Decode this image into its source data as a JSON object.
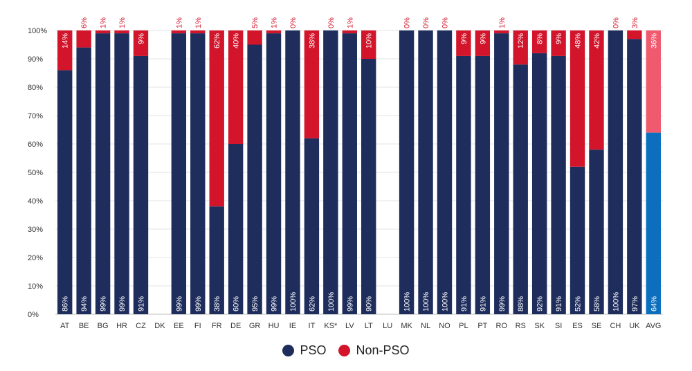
{
  "chart_data": {
    "type": "bar",
    "stacked": true,
    "categories": [
      "AT",
      "BE",
      "BG",
      "HR",
      "CZ",
      "DK",
      "EE",
      "FI",
      "FR",
      "DE",
      "GR",
      "HU",
      "IE",
      "IT",
      "KS*",
      "LV",
      "LT",
      "LU",
      "MK",
      "NL",
      "NO",
      "PL",
      "PT",
      "RO",
      "RS",
      "SK",
      "SI",
      "ES",
      "SE",
      "CH",
      "UK",
      "AVG"
    ],
    "series": [
      {
        "name": "PSO",
        "values": [
          86,
          94,
          99,
          99,
          91,
          null,
          99,
          99,
          38,
          60,
          95,
          99,
          100,
          62,
          100,
          99,
          90,
          null,
          100,
          100,
          100,
          91,
          91,
          99,
          88,
          92,
          91,
          52,
          58,
          100,
          97,
          64
        ],
        "labels": [
          "86%",
          "94%",
          "99%",
          "99%",
          "91%",
          "",
          "99%",
          "99%",
          "38%",
          "60%",
          "95%",
          "99%",
          "100%",
          "62%",
          "100%",
          "99%",
          "90%",
          "",
          "100%",
          "100%",
          "100%",
          "91%",
          "91%",
          "99%",
          "88%",
          "92%",
          "91%",
          "52%",
          "58%",
          "100%",
          "97%",
          "64%"
        ]
      },
      {
        "name": "Non-PSO",
        "values": [
          14,
          6,
          1,
          1,
          9,
          null,
          1,
          1,
          62,
          40,
          5,
          1,
          0,
          38,
          0,
          1,
          10,
          null,
          0,
          0,
          0,
          9,
          9,
          1,
          12,
          8,
          9,
          48,
          42,
          0,
          3,
          36
        ],
        "labels": [
          "14%",
          "6%",
          "1%",
          "1%",
          "9%",
          "",
          "1%",
          "1%",
          "62%",
          "40%",
          "5%",
          "1%",
          "0%",
          "38%",
          "0%",
          "1%",
          "10%",
          "",
          "0%",
          "0%",
          "0%",
          "9%",
          "9%",
          "1%",
          "12%",
          "8%",
          "9%",
          "48%",
          "42%",
          "0%",
          "3%",
          "36%"
        ]
      }
    ],
    "yticks": [
      "0%",
      "10%",
      "20%",
      "30%",
      "40%",
      "50%",
      "60%",
      "70%",
      "80%",
      "90%",
      "100%"
    ],
    "ylim": [
      0,
      100
    ],
    "grid": true,
    "legend": "bottom-center",
    "colors": {
      "pso": "#1e2d5c",
      "non_pso": "#d2152b",
      "avg_pso": "#0b6fbe",
      "avg_non_pso": "#ef5a6f",
      "grid": "#e3e3e3",
      "axis_text": "#333333"
    }
  },
  "legend": {
    "items": [
      {
        "label": "PSO",
        "color": "#1e2d5c"
      },
      {
        "label": "Non-PSO",
        "color": "#d2152b"
      }
    ]
  }
}
